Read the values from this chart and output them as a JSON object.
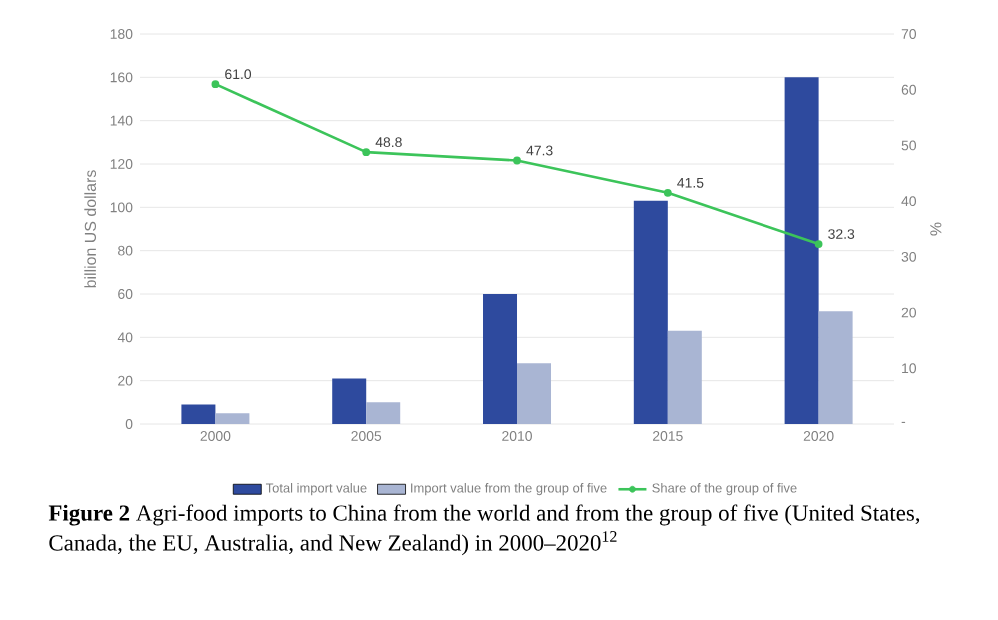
{
  "chart_data": {
    "type": "bar",
    "categories": [
      "2000",
      "2005",
      "2010",
      "2015",
      "2020"
    ],
    "series": [
      {
        "name": "Total import value",
        "color": "#2e4a9e",
        "values": [
          9,
          21,
          60,
          103,
          160
        ]
      },
      {
        "name": "Import value from the group of five",
        "color": "#a9b5d3",
        "values": [
          5,
          10,
          28,
          43,
          52
        ]
      },
      {
        "name": "Share of the group of five",
        "type": "line",
        "axis": "y2",
        "color": "#3cc45a",
        "marker": "circle",
        "values": [
          61.0,
          48.8,
          47.3,
          41.5,
          32.3
        ],
        "value_labels": [
          "61.0",
          "48.8",
          "47.3",
          "41.5",
          "32.3"
        ]
      }
    ],
    "ylabel": "billion US dollars",
    "y2label": "%",
    "ylim": [
      0,
      180
    ],
    "yticks": [
      0,
      20,
      40,
      60,
      80,
      100,
      120,
      140,
      160,
      180
    ],
    "y2lim": [
      0,
      70
    ],
    "y2ticks": [
      {
        "value": 0,
        "label": "-"
      },
      10,
      20,
      30,
      40,
      50,
      60,
      70
    ],
    "grid": "y",
    "legend": "bottom",
    "annotations": [
      "**Figure 2** Agri-food imports to China from the world and from the group of five (United States, Canada, the EU, Australia, and New Zealand) in 2000–2020$^{12}$"
    ]
  }
}
